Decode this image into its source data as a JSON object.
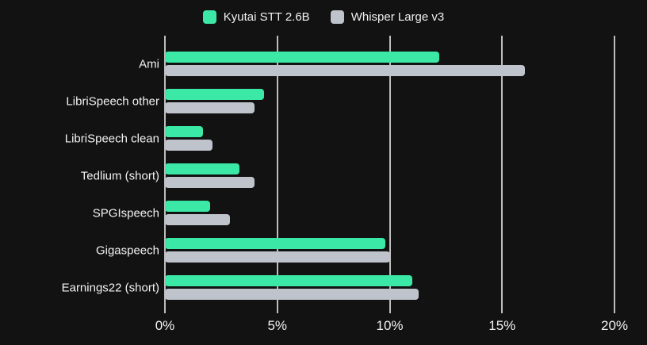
{
  "chart_data": {
    "type": "bar",
    "orientation": "horizontal",
    "title": "",
    "xlabel": "",
    "ylabel": "",
    "categories": [
      "Ami",
      "LibriSpeech other",
      "LibriSpeech clean",
      "Tedlium (short)",
      "SPGIspeech",
      "Gigaspeech",
      "Earnings22 (short)"
    ],
    "series": [
      {
        "name": "Kyutai STT 2.6B",
        "color": "#3ce8a5",
        "values": [
          12.2,
          4.4,
          1.7,
          3.3,
          2.0,
          9.8,
          11.0
        ]
      },
      {
        "name": "Whisper Large v3",
        "color": "#bfc4cc",
        "values": [
          16.0,
          4.0,
          2.1,
          4.0,
          2.9,
          10.0,
          11.3
        ]
      }
    ],
    "value_unit": "%",
    "xlim": [
      0,
      20
    ],
    "x_ticks": [
      {
        "value": 0,
        "label": "0%"
      },
      {
        "value": 5,
        "label": "5%"
      },
      {
        "value": 10,
        "label": "10%"
      },
      {
        "value": 15,
        "label": "15%"
      },
      {
        "value": 20,
        "label": "20%"
      }
    ],
    "grid": "vertical",
    "legend_position": "top",
    "colors": {
      "background": "#121212",
      "gridline": "rgba(255,255,255,0.72)",
      "text": "#f2f2f2"
    }
  }
}
